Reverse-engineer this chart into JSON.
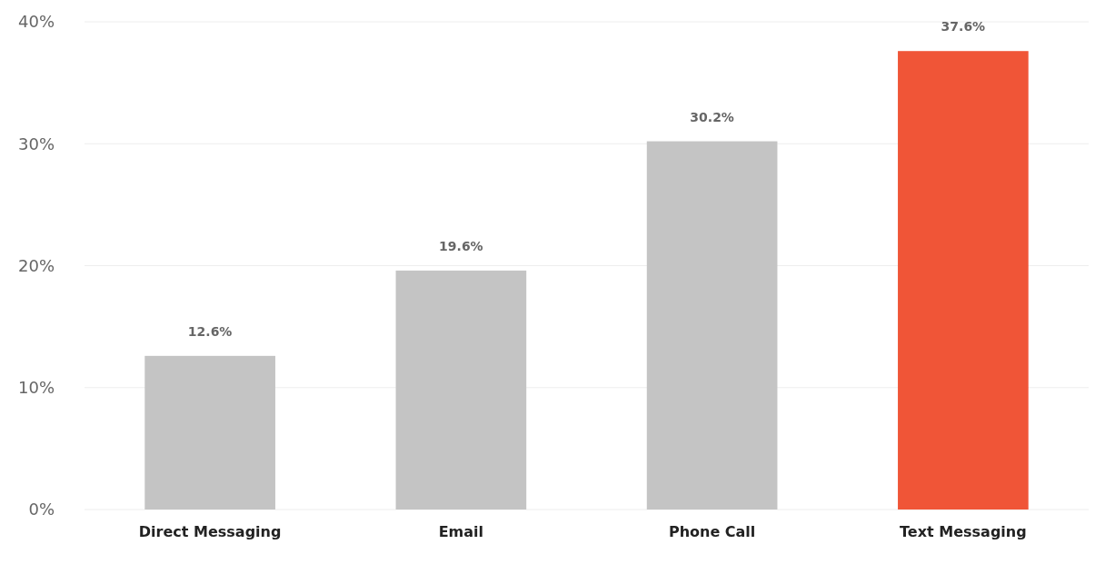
{
  "chart_data": {
    "type": "bar",
    "categories": [
      "Direct Messaging",
      "Email",
      "Phone Call",
      "Text Messaging"
    ],
    "values": [
      12.6,
      19.6,
      30.2,
      37.6
    ],
    "colors": [
      "#c4c4c4",
      "#c4c4c4",
      "#c4c4c4",
      "#f05537"
    ],
    "value_labels": [
      "12.6%",
      "19.6%",
      "30.2%",
      "37.6%"
    ],
    "ylim": [
      0,
      40
    ],
    "yticks": [
      {
        "value": 0,
        "label": "0%"
      },
      {
        "value": 10,
        "label": "10%"
      },
      {
        "value": 20,
        "label": "20%"
      },
      {
        "value": 30,
        "label": "30%"
      },
      {
        "value": 40,
        "label": "40%"
      }
    ],
    "grid": "y"
  }
}
